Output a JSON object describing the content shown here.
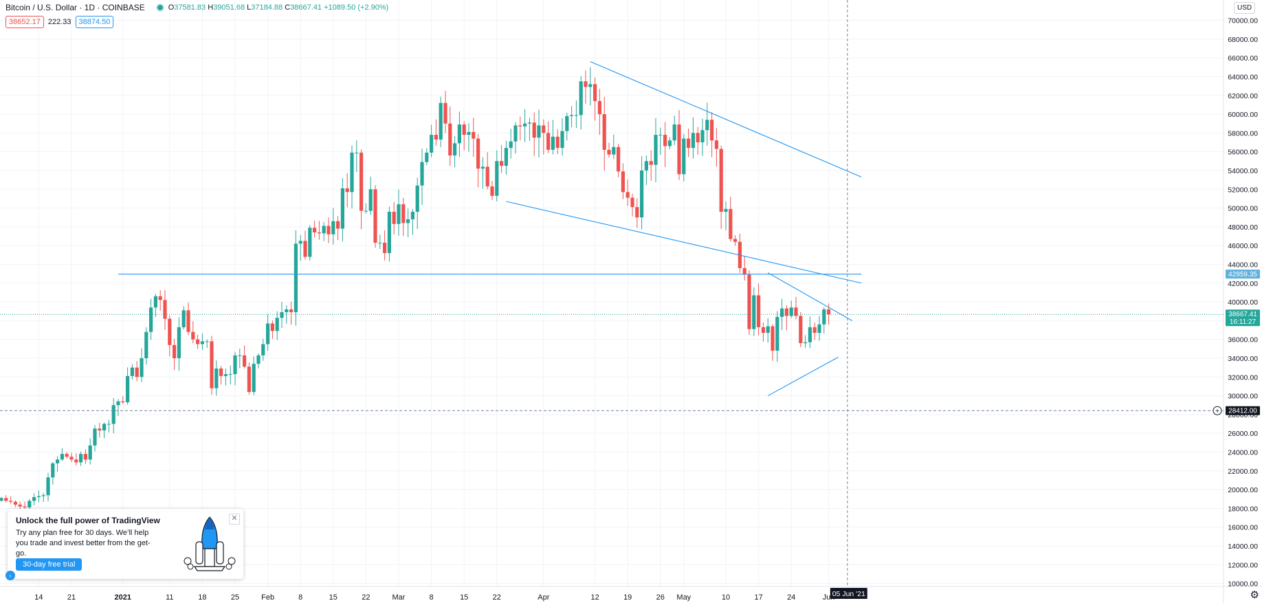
{
  "header": {
    "symbol": "Bitcoin / U.S. Dollar · 1D · COINBASE",
    "open": "37581.83",
    "high": "39051.68",
    "low": "37184.88",
    "close": "38667.41",
    "change": "+1089.50 (+2.90%)",
    "sell_price": "38652.17",
    "spread": "222.33",
    "buy_price": "38874.50"
  },
  "currency_button": "USD",
  "settings_icon": "gear-icon",
  "price_tags": {
    "resistance": "42959.35",
    "last": "38667.41",
    "countdown": "16:11:27",
    "crosshair_price": "28412.00",
    "crosshair_date": "05 Jun '21"
  },
  "promo": {
    "title": "Unlock the full power of TradingView",
    "body": "Try any plan free for 30 days. We’ll help you trade and invest better from the get-go.",
    "button": "30-day free trial",
    "close": "✕"
  },
  "colors": {
    "up": "#26a69a",
    "down": "#ef5350",
    "trendline": "#2196f3",
    "grid": "#f0f3fa",
    "axis_text": "#131722"
  },
  "chart_data": {
    "type": "candlestick",
    "ylim": [
      9000,
      70000
    ],
    "y_ticks": [
      "10000.00",
      "12000.00",
      "14000.00",
      "16000.00",
      "18000.00",
      "20000.00",
      "22000.00",
      "24000.00",
      "26000.00",
      "28000.00",
      "30000.00",
      "32000.00",
      "34000.00",
      "36000.00",
      "38000.00",
      "40000.00",
      "42000.00",
      "44000.00",
      "46000.00",
      "48000.00",
      "50000.00",
      "52000.00",
      "54000.00",
      "56000.00",
      "58000.00",
      "60000.00",
      "62000.00",
      "64000.00",
      "66000.00",
      "68000.00",
      "70000.00"
    ],
    "x_ticks": [
      {
        "label": "14",
        "date": "2020-12-14"
      },
      {
        "label": "21",
        "date": "2020-12-21"
      },
      {
        "label": "2021",
        "date": "2021-01-01"
      },
      {
        "label": "11",
        "date": "2021-01-11"
      },
      {
        "label": "18",
        "date": "2021-01-18"
      },
      {
        "label": "25",
        "date": "2021-01-25"
      },
      {
        "label": "Feb",
        "date": "2021-02-01"
      },
      {
        "label": "8",
        "date": "2021-02-08"
      },
      {
        "label": "15",
        "date": "2021-02-15"
      },
      {
        "label": "22",
        "date": "2021-02-22"
      },
      {
        "label": "Mar",
        "date": "2021-03-01"
      },
      {
        "label": "8",
        "date": "2021-03-08"
      },
      {
        "label": "15",
        "date": "2021-03-15"
      },
      {
        "label": "22",
        "date": "2021-03-22"
      },
      {
        "label": "Apr",
        "date": "2021-04-01"
      },
      {
        "label": "12",
        "date": "2021-04-12"
      },
      {
        "label": "19",
        "date": "2021-04-19"
      },
      {
        "label": "26",
        "date": "2021-04-26"
      },
      {
        "label": "May",
        "date": "2021-05-01"
      },
      {
        "label": "10",
        "date": "2021-05-10"
      },
      {
        "label": "17",
        "date": "2021-05-17"
      },
      {
        "label": "24",
        "date": "2021-05-24"
      },
      {
        "label": "Jun",
        "date": "2021-06-01"
      }
    ],
    "start_date": "2020-12-06",
    "closes": [
      19100,
      18800,
      18700,
      18400,
      18200,
      18100,
      18800,
      19200,
      19300,
      19400,
      21300,
      22800,
      23200,
      23800,
      23500,
      23200,
      22900,
      23800,
      23200,
      24700,
      26500,
      26300,
      27000,
      27000,
      29000,
      29400,
      29300,
      32100,
      33000,
      32000,
      34000,
      36800,
      39400,
      40600,
      40200,
      38200,
      35400,
      34000,
      37300,
      39100,
      36800,
      36000,
      35500,
      35800,
      35800,
      30800,
      32900,
      32100,
      32300,
      32300,
      34300,
      34300,
      33100,
      30400,
      33400,
      34300,
      35500,
      37700,
      36900,
      38300,
      38900,
      39200,
      38900,
      46200,
      46500,
      44800,
      47900,
      47400,
      47300,
      48100,
      47200,
      48600,
      47800,
      52100,
      51700,
      55900,
      55900,
      49700,
      49700,
      52000,
      46300,
      46300,
      45200,
      49600,
      48300,
      50400,
      48400,
      48800,
      49600,
      52400,
      54900,
      55900,
      57800,
      57300,
      61200,
      59000,
      55600,
      56900,
      58900,
      57800,
      58100,
      57400,
      54200,
      54400,
      52300,
      51300,
      55000,
      54500,
      56400,
      57100,
      58800,
      58700,
      59000,
      59100,
      57500,
      58800,
      58000,
      56200,
      57600,
      56400,
      58200,
      59800,
      59900,
      59900,
      63500,
      62900,
      63200,
      61400,
      60000,
      56200,
      55700,
      56500,
      53900,
      51700,
      51100,
      50100,
      49000,
      54000,
      55000,
      54600,
      57800,
      57800,
      56600,
      57200,
      58900,
      53600,
      57400,
      56400,
      58000,
      57000,
      58300,
      59400,
      57200,
      56300,
      49600,
      49900,
      46700,
      46400,
      43600,
      42900,
      37100,
      40700,
      37300,
      36700,
      37400,
      34800,
      38400,
      39300,
      38500,
      39400,
      38500,
      35600,
      35700,
      37300,
      36700,
      37600,
      39200,
      38667
    ]
  },
  "trendlines": [
    {
      "name": "upper-resistance",
      "from": {
        "date": "2021-04-11",
        "price": 65600
      },
      "to": {
        "date": "2021-06-08",
        "price": 53300
      }
    },
    {
      "name": "lower-channel",
      "from": {
        "date": "2021-03-24",
        "price": 50700
      },
      "to": {
        "date": "2021-06-08",
        "price": 42000
      }
    },
    {
      "name": "triangle-top",
      "from": {
        "date": "2021-05-19",
        "price": 43100
      },
      "to": {
        "date": "2021-06-06",
        "price": 38000
      }
    },
    {
      "name": "triangle-bottom",
      "from": {
        "date": "2021-05-19",
        "price": 30000
      },
      "to": {
        "date": "2021-06-03",
        "price": 34100
      }
    },
    {
      "name": "horizontal-level",
      "from": {
        "date": "2020-12-31",
        "price": 42959.35
      },
      "to": {
        "date": "2021-06-08",
        "price": 42959.35
      }
    }
  ]
}
